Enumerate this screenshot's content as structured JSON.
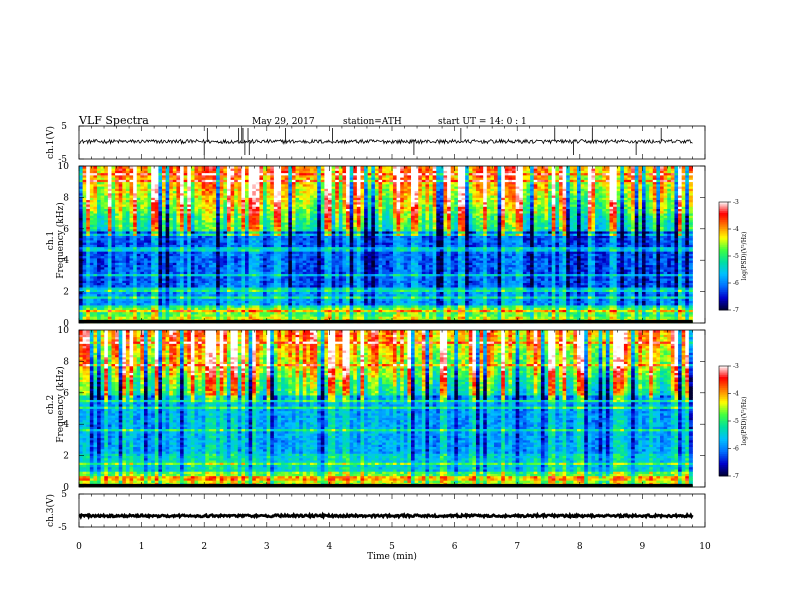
{
  "header": {
    "title": "VLF Spectra",
    "date": "May 29, 2017",
    "station": "station=ATH",
    "start_ut": "start UT =  14: 0  : 1"
  },
  "chart_data": [
    {
      "type": "line",
      "panel": "ch1-waveform",
      "ylabel": "ch.1(V)",
      "ylim": [
        -5,
        5
      ],
      "ytick_labels": [
        "5",
        "-5"
      ],
      "xlim": [
        0,
        10
      ],
      "data_extent_min": 9.8,
      "baseline_v": 0.3,
      "noise_v": 0.6,
      "spikes_x_min": [
        2.0,
        2.05,
        2.55,
        2.6,
        2.62,
        2.65,
        2.7,
        2.72,
        3.3,
        4.05,
        5.35,
        6.1,
        7.6,
        7.9,
        8.2,
        8.9,
        9.3
      ],
      "color": "#000000"
    },
    {
      "type": "heatmap",
      "panel": "ch1-spectrogram",
      "ylabel": "ch.1\nFrequency (kHz)",
      "ylim": [
        0,
        10
      ],
      "ytick_labels": [
        "0",
        "2",
        "4",
        "6",
        "8",
        "10"
      ],
      "xlim": [
        0,
        10
      ],
      "data_extent_min": 9.8,
      "colorbar": {
        "label": "log(PSD)(V²/Hz)",
        "range": [
          -7,
          -3
        ],
        "tick_labels": [
          "-3",
          "-4",
          "-5",
          "-6",
          "-7"
        ]
      }
    },
    {
      "type": "heatmap",
      "panel": "ch2-spectrogram",
      "ylabel": "ch.2\nFrequency (kHz)",
      "ylim": [
        0,
        10
      ],
      "ytick_labels": [
        "0",
        "2",
        "4",
        "6",
        "8",
        "10"
      ],
      "xlim": [
        0,
        10
      ],
      "data_extent_min": 9.8,
      "colorbar": {
        "label": "log(PSD)(V²/Hz)",
        "range": [
          -7,
          -3
        ],
        "tick_labels": [
          "-3",
          "-4",
          "-5",
          "-6",
          "-7"
        ]
      }
    },
    {
      "type": "line",
      "panel": "ch3-waveform",
      "ylabel": "ch.3(V)",
      "ylim": [
        -5,
        5
      ],
      "ytick_labels": [
        "5",
        "-5"
      ],
      "xlim": [
        0,
        10
      ],
      "data_extent_min": 9.8,
      "baseline_v": -1.6,
      "noise_v": 0.35,
      "color": "#000000",
      "xlabel": "Time (min)",
      "xtick_labels": [
        "0",
        "1",
        "2",
        "3",
        "4",
        "5",
        "6",
        "7",
        "8",
        "9",
        "10"
      ]
    }
  ],
  "colors": {
    "background": "#ffffff",
    "axes": "#000000",
    "colormap": [
      "#000033",
      "#0000cc",
      "#0070ff",
      "#00c0ff",
      "#00e0a0",
      "#40ff40",
      "#ffff00",
      "#ff8000",
      "#ff0000",
      "#ffffff"
    ]
  }
}
